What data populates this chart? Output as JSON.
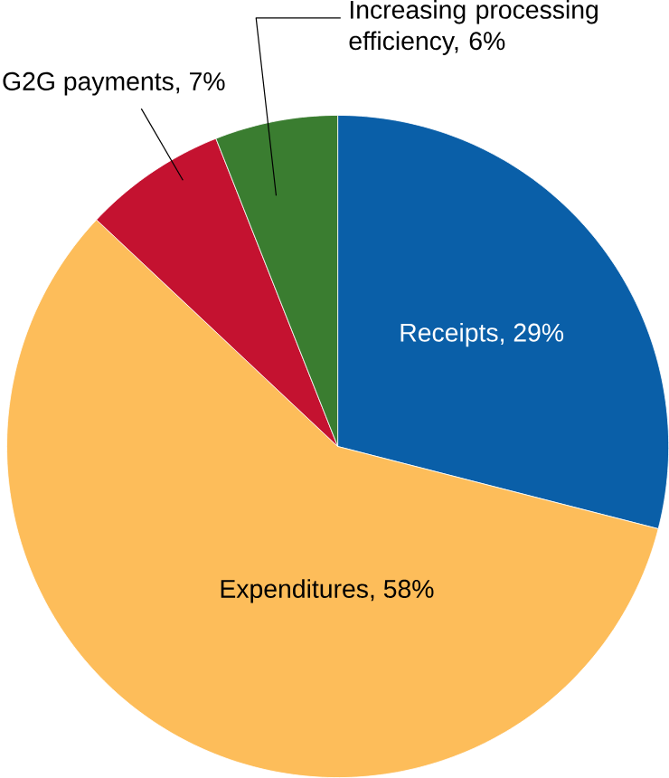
{
  "chart_data": {
    "type": "pie",
    "categories": [
      "Receipts, 29%",
      "Expenditures, 58%",
      "G2G payments, 7%",
      "Increasing processing efficiency, 6%"
    ],
    "values": [
      29,
      58,
      7,
      6
    ],
    "colors": [
      "#0a5fa8",
      "#fdbd5a",
      "#c41230",
      "#3a7d30"
    ]
  }
}
